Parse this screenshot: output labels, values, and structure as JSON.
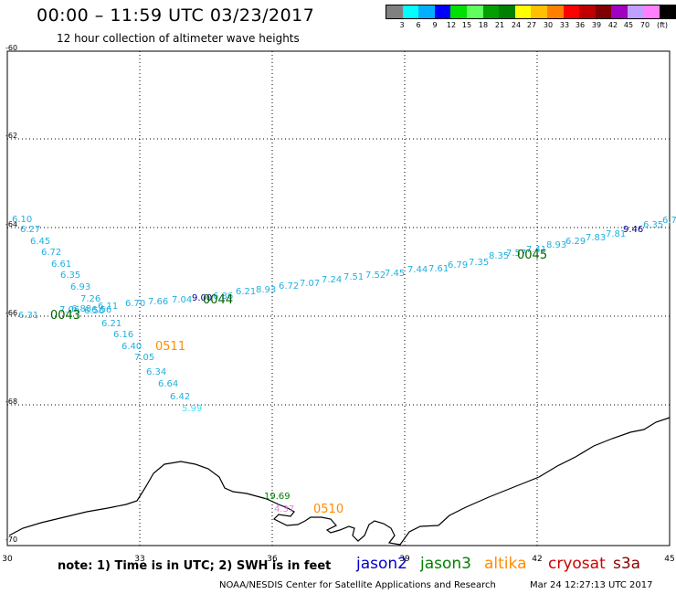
{
  "header": {
    "title": "00:00 – 11:59 UTC 03/23/2017",
    "subtitle": "12 hour collection of altimeter wave heights"
  },
  "scale": {
    "colors": [
      "#808080",
      "#00ffff",
      "#00b0ff",
      "#0000ff",
      "#00e000",
      "#60ff60",
      "#00a000",
      "#008000",
      "#ffff00",
      "#ffc000",
      "#ff8000",
      "#ff0000",
      "#c00000",
      "#800000",
      "#a000c0",
      "#c0a0ff",
      "#ff80ff",
      "#000000"
    ],
    "labels": [
      "3",
      "6",
      "9",
      "12",
      "15",
      "18",
      "21",
      "24",
      "27",
      "30",
      "33",
      "36",
      "39",
      "42",
      "45",
      "70"
    ],
    "unit": "(ft)"
  },
  "axes": {
    "x_ticks": [
      "30",
      "33",
      "36",
      "39",
      "42",
      "45"
    ],
    "y_ticks": [
      "-60",
      "-62",
      "-64",
      "-66",
      "-68",
      "-70"
    ]
  },
  "tracks": [
    {
      "id": "0043",
      "color": "#006400"
    },
    {
      "id": "0044",
      "color": "#006400"
    },
    {
      "id": "0045",
      "color": "#006400"
    },
    {
      "id": "0511",
      "color": "#ff8c00"
    },
    {
      "id": "0510",
      "color": "#ff8c00"
    }
  ],
  "readings": {
    "track_0043": [
      "6.10",
      "6.27",
      "6.45",
      "6.72",
      "6.61",
      "6.35",
      "6.93",
      "7.26",
      "7.06",
      "6.88",
      "6.56"
    ],
    "track_0043_b": [
      "6.31",
      "6.56"
    ],
    "track_0044": [
      "6.11",
      "6.70",
      "7.66",
      "7.04",
      "9.00",
      "6.86",
      "6.21",
      "8.93",
      "6.72",
      "7.07",
      "7.24",
      "7.51",
      "7.52",
      "7.45",
      "7.44",
      "7.61",
      "6.79",
      "7.35",
      "8.35",
      "7.57",
      "7.41",
      "8.93",
      "6.29",
      "7.83",
      "7.81",
      "9.46",
      "6.35",
      "6.7"
    ],
    "track_0511": [
      "6.21",
      "6.16",
      "6.40",
      "7.05",
      "6.34",
      "6.64",
      "6.42",
      "5.99"
    ],
    "track_0510": [
      "19.69",
      "4.37"
    ]
  },
  "footer": {
    "note": "note: 1) Time is in UTC; 2) SWH is in feet",
    "satellites": [
      {
        "name": "jason2",
        "color": "#0000cd"
      },
      {
        "name": "jason3",
        "color": "#008000"
      },
      {
        "name": "altika",
        "color": "#ff8c00"
      },
      {
        "name": "cryosat",
        "color": "#cc0000"
      },
      {
        "name": "s3a",
        "color": "#8b0000"
      }
    ],
    "credit": "NOAA/NESDIS Center for Satellite Applications and Research",
    "timestamp": "Mar 24 12:27:13 UTC 2017"
  }
}
